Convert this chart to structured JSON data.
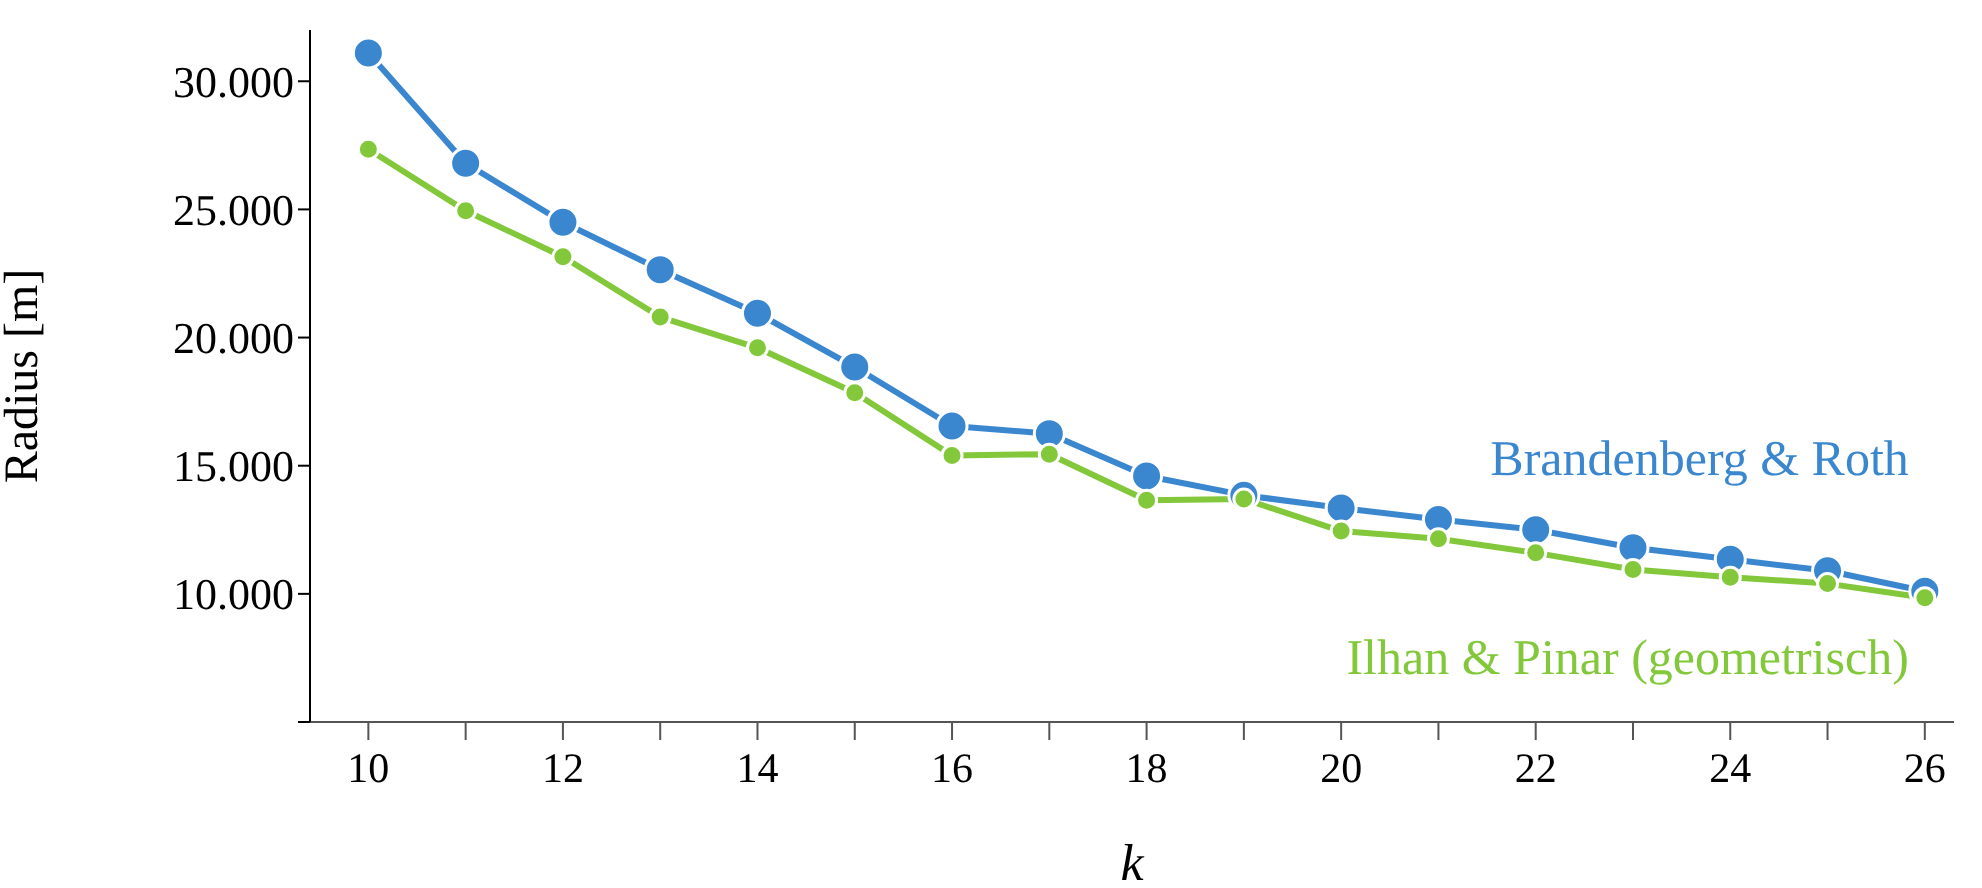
{
  "chart_data": {
    "type": "line",
    "xlabel": "k",
    "ylabel": "Radius [m]",
    "x": [
      10,
      11,
      12,
      13,
      14,
      15,
      16,
      17,
      18,
      19,
      20,
      21,
      22,
      23,
      24,
      25,
      26
    ],
    "series": [
      {
        "name": "Brandenberg & Roth",
        "color": "#3a87cf",
        "values": [
          31100,
          26800,
          24500,
          22650,
          20950,
          18850,
          16550,
          16250,
          14600,
          13850,
          13350,
          12900,
          12500,
          11800,
          11350,
          10900,
          10100
        ]
      },
      {
        "name": "Ilhan & Pinar (geometrisch)",
        "color": "#82c83a",
        "values": [
          27350,
          24950,
          23150,
          20800,
          19600,
          17850,
          15400,
          15450,
          13650,
          13700,
          12450,
          12150,
          11600,
          10950,
          10650,
          10400,
          9850
        ]
      }
    ],
    "xlim": [
      9.4,
      26.3
    ],
    "xticks": [
      10,
      {
        "value": 11,
        "label": null
      },
      12,
      {
        "value": 13,
        "label": null
      },
      14,
      {
        "value": 15,
        "label": null
      },
      16,
      {
        "value": 17,
        "label": null
      },
      18,
      {
        "value": 19,
        "label": null
      },
      20,
      {
        "value": 21,
        "label": null
      },
      22,
      {
        "value": 23,
        "label": null
      },
      24,
      {
        "value": 25,
        "label": null
      },
      26
    ],
    "ylim": [
      5000,
      32000
    ],
    "yticks": [
      {
        "value": 5000,
        "label": null
      },
      {
        "value": 10000,
        "label": "10.000"
      },
      {
        "value": 15000,
        "label": "15.000"
      },
      {
        "value": 20000,
        "label": "20.000"
      },
      {
        "value": 25000,
        "label": "25.000"
      },
      {
        "value": 30000,
        "label": "30.000"
      }
    ],
    "grid": false,
    "marker": "circle",
    "line_style": "solid"
  }
}
